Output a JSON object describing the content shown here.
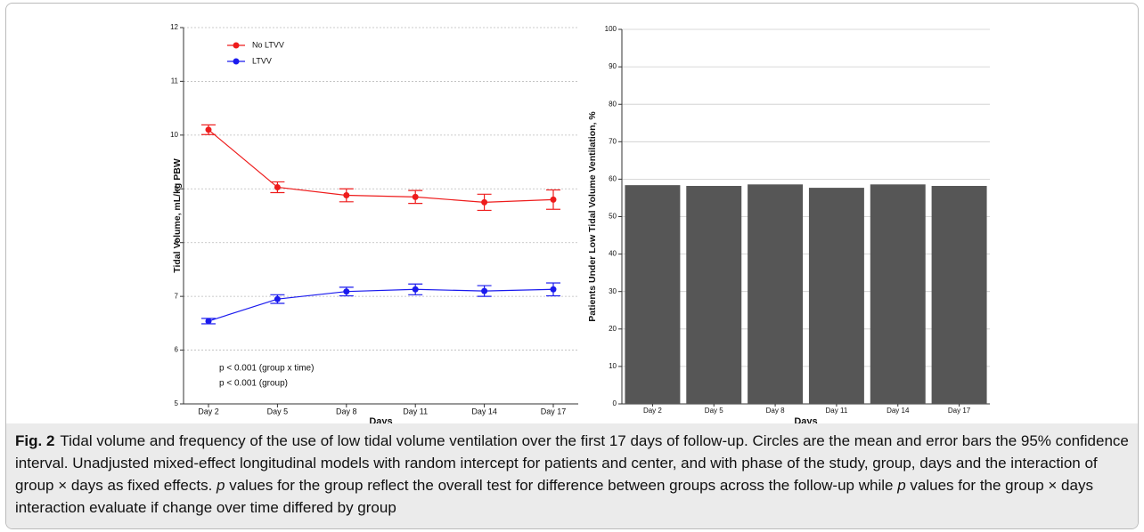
{
  "chart_data": [
    {
      "type": "line",
      "xlabel": "Days",
      "ylabel": "Tidal Volume, mL/kg PBW",
      "categories": [
        "Day 2",
        "Day 5",
        "Day 8",
        "Day 11",
        "Day 14",
        "Day 17"
      ],
      "series": [
        {
          "name": "No LTVV",
          "color": "#ee1c1c",
          "values": [
            10.1,
            9.03,
            8.88,
            8.85,
            8.75,
            8.8
          ],
          "errors": [
            0.09,
            0.1,
            0.12,
            0.12,
            0.15,
            0.18
          ]
        },
        {
          "name": "LTVV",
          "color": "#1a1aee",
          "values": [
            6.54,
            6.95,
            7.09,
            7.13,
            7.1,
            7.13
          ],
          "errors": [
            0.05,
            0.08,
            0.08,
            0.1,
            0.1,
            0.12
          ]
        }
      ],
      "ylim": [
        5,
        12
      ],
      "yticks": [
        5,
        6,
        7,
        8,
        9,
        10,
        11,
        12
      ],
      "grid": true,
      "annotations": [
        "p < 0.001 (group x time)",
        "p < 0.001 (group)"
      ]
    },
    {
      "type": "bar",
      "xlabel": "Days",
      "ylabel": "Patients Under Low Tidal Volume Ventilation, %",
      "categories": [
        "Day 2",
        "Day 5",
        "Day 8",
        "Day 11",
        "Day 14",
        "Day 17"
      ],
      "values": [
        58.4,
        58.2,
        58.6,
        57.7,
        58.6,
        58.2
      ],
      "color": "#565656",
      "ylim": [
        0,
        100
      ],
      "yticks": [
        0,
        10,
        20,
        30,
        40,
        50,
        60,
        70,
        80,
        90,
        100
      ],
      "grid": true
    }
  ],
  "caption": {
    "label": "Fig. 2",
    "parts": [
      "Tidal volume and frequency of the use of low tidal volume ventilation over the first 17 days of follow-up. Circles are the mean and error bars the 95% confidence interval. Unadjusted mixed-effect longitudinal models with random intercept for patients and center, and with phase of the study, group, days and the interaction of group × days as fixed effects. ",
      "p",
      " values for the group reflect the overall test for difference between groups across the follow-up while ",
      "p",
      " values for the group × days interaction evaluate if change over time differed by group"
    ]
  }
}
